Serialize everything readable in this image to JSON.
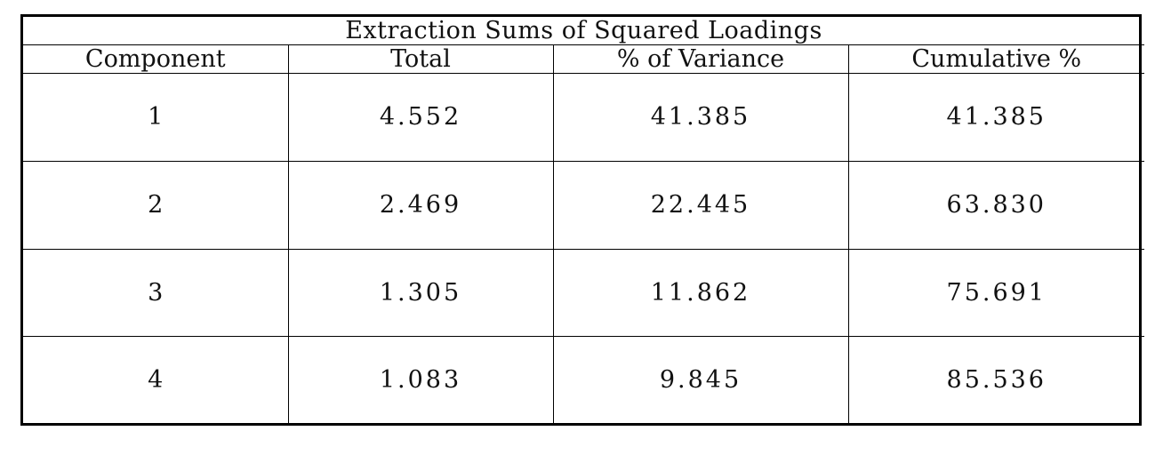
{
  "table": {
    "caption": "Extraction Sums of Squared Loadings",
    "headers": [
      "Component",
      "Total",
      "% of Variance",
      "Cumulative %"
    ],
    "rows": [
      [
        "1",
        "4.552",
        "41.385",
        "41.385"
      ],
      [
        "2",
        "2.469",
        "22.445",
        "63.830"
      ],
      [
        "3",
        "1.305",
        "11.862",
        "75.691"
      ],
      [
        "4",
        "1.083",
        "9.845",
        "85.536"
      ]
    ]
  }
}
